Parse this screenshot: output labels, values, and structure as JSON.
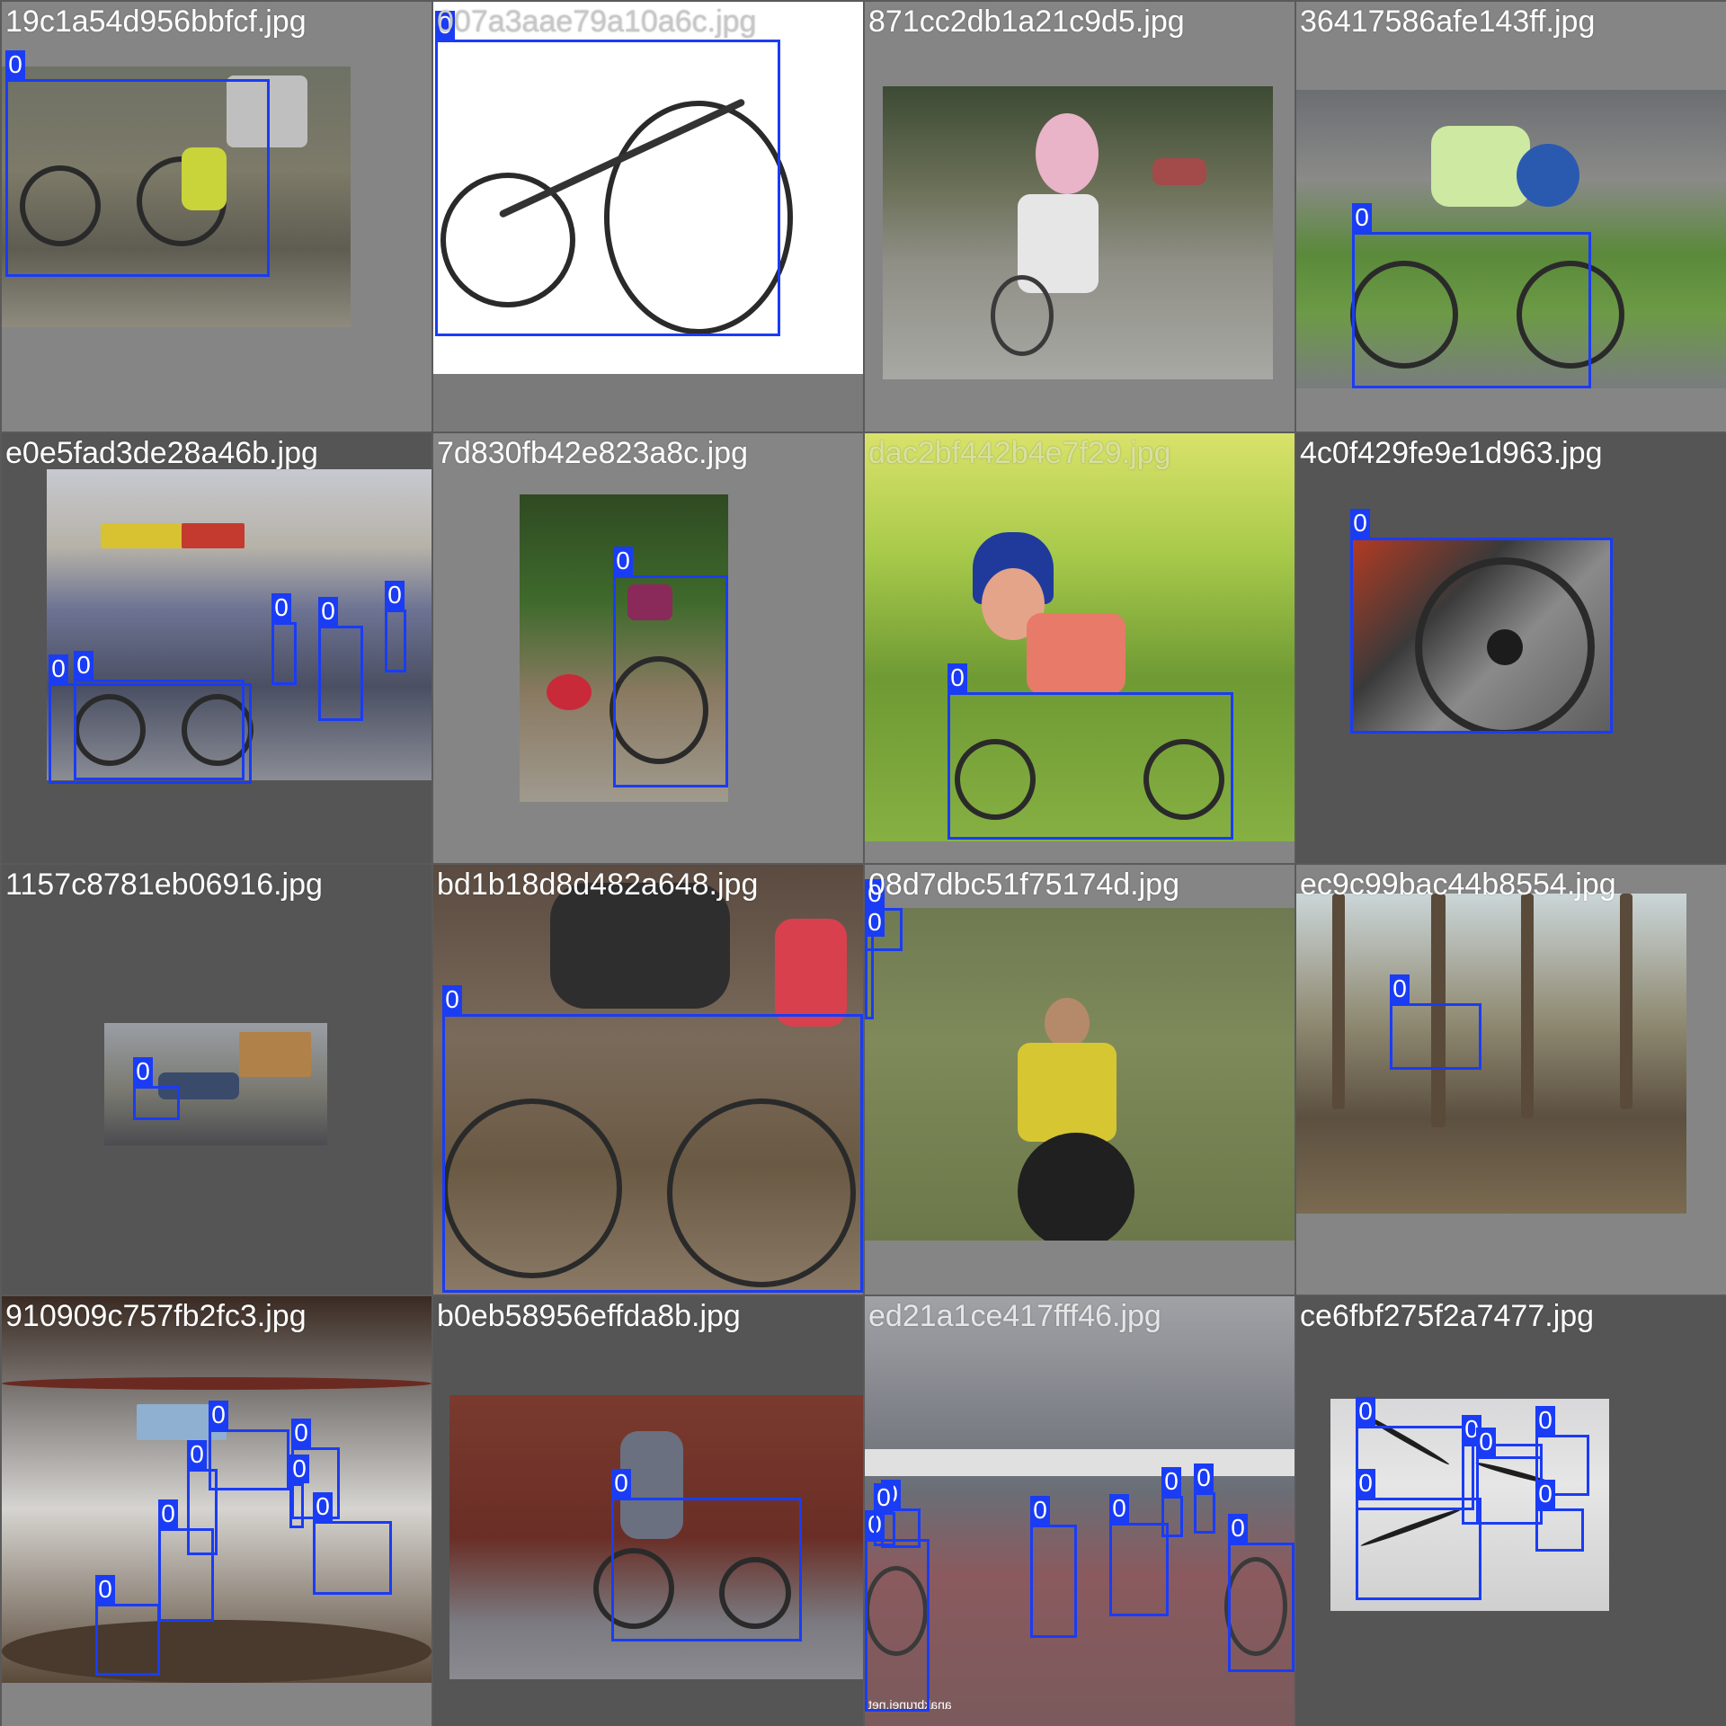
{
  "box_color": "#1a3cf5",
  "label_color": "#ffffff",
  "tiles": [
    {
      "filename": "19c1a54d956bbfcf.jpg",
      "boxes": [
        "0"
      ]
    },
    {
      "filename": "007a3aae79a10a6c.jpg",
      "boxes": [
        "0"
      ]
    },
    {
      "filename": "871cc2db1a21c9d5.jpg",
      "boxes": []
    },
    {
      "filename": "36417586afe143ff.jpg",
      "boxes": [
        "0"
      ]
    },
    {
      "filename": "e0e5fad3de28a46b.jpg",
      "boxes": [
        "0",
        "0",
        "0",
        "0",
        "0"
      ]
    },
    {
      "filename": "7d830fb42e823a8c.jpg",
      "boxes": [
        "0"
      ]
    },
    {
      "filename": "dac2bf442b4e7f29.jpg",
      "boxes": [
        "0"
      ]
    },
    {
      "filename": "4c0f429fe9e1d963.jpg",
      "boxes": [
        "0"
      ]
    },
    {
      "filename": "1157c8781eb06916.jpg",
      "boxes": [
        "0"
      ]
    },
    {
      "filename": "bd1b18d8d482a648.jpg",
      "boxes": [
        "0"
      ]
    },
    {
      "filename": "08d7dbc51f75174d.jpg",
      "boxes": [
        "0",
        "0"
      ]
    },
    {
      "filename": "ec9c99bac44b8554.jpg",
      "boxes": [
        "0"
      ]
    },
    {
      "filename": "910909c757fb2fc3.jpg",
      "boxes": [
        "0",
        "0",
        "0",
        "0",
        "0",
        "0",
        "0"
      ]
    },
    {
      "filename": "b0eb58956effda8b.jpg",
      "boxes": [
        "0"
      ]
    },
    {
      "filename": "ed21a1ce417fff46.jpg",
      "boxes": [
        "0",
        "0",
        "0",
        "0",
        "0",
        "0",
        "0",
        "0"
      ]
    },
    {
      "filename": "ce6fbf275f2a7477.jpg",
      "boxes": [
        "0",
        "0",
        "0",
        "0",
        "0",
        "0"
      ]
    }
  ],
  "watermark": "anakbrunei.net"
}
